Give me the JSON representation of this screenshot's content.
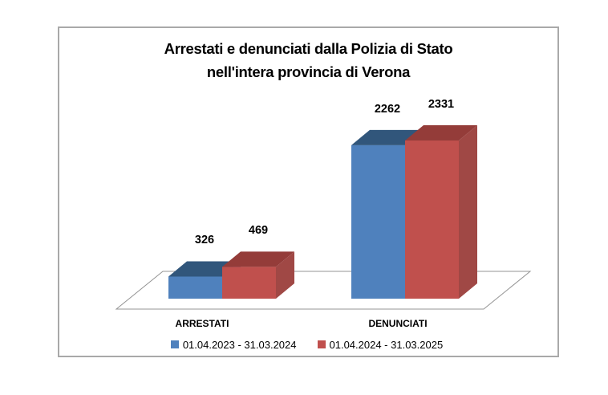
{
  "title_lines": [
    "Arrestati e denunciati dalla Polizia di Stato",
    "nell'intera provincia di Verona"
  ],
  "chart_data": {
    "type": "bar",
    "style": "3d-clustered",
    "title": "Arrestati e denunciati dalla Polizia di Stato nell'intera provincia di Verona",
    "categories": [
      "ARRESTATI",
      "DENUNCIATI"
    ],
    "series": [
      {
        "name": "01.04.2023 - 31.03.2024",
        "color": "#4F81BD",
        "color_top": "#31567B",
        "color_side": "#3C6C9F",
        "values": [
          326,
          2262
        ]
      },
      {
        "name": "01.04.2024 - 31.03.2025",
        "color": "#C0504D",
        "color_top": "#943C39",
        "color_side": "#A04845",
        "values": [
          469,
          2331
        ]
      }
    ],
    "value_labels": [
      326,
      469,
      2262,
      2331
    ],
    "legend_position": "bottom",
    "xlabel": "",
    "ylabel": "",
    "ylim": [
      0,
      2400
    ],
    "grid": false,
    "axes_visible": false
  },
  "colors": {
    "frame_border": "#A9A9A9",
    "floor_stroke": "#949494",
    "background": "#FFFFFF",
    "text": "#000000"
  }
}
